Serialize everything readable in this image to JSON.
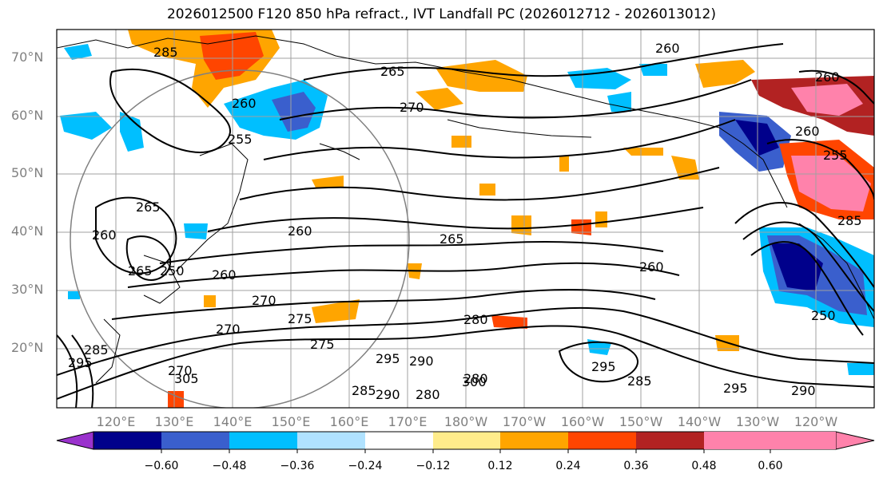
{
  "title": "2026012500 F120 850 hPa refract., IVT Landfall PC (2026012712 - 2026013012)",
  "lat_labels": [
    "70°N",
    "60°N",
    "50°N",
    "40°N",
    "30°N",
    "20°N"
  ],
  "lon_labels": [
    "120°E",
    "130°E",
    "140°E",
    "150°E",
    "160°E",
    "170°E",
    "180°W",
    "170°W",
    "160°W",
    "150°W",
    "140°W",
    "130°W",
    "120°W"
  ],
  "colorbar": {
    "ticks": [
      "−0.60",
      "−0.48",
      "−0.36",
      "−0.24",
      "−0.12",
      "0.12",
      "0.24",
      "0.36",
      "0.48",
      "0.60"
    ],
    "colors": [
      "#9a32cd",
      "#00008b",
      "#3a5fcd",
      "#00bfff",
      "#b0e2ff",
      "#ffffff",
      "#ffec8b",
      "#ffa500",
      "#ff4500",
      "#b22222",
      "#ff82ab"
    ]
  },
  "contour_labels": [
    "285",
    "260",
    "265",
    "270",
    "260",
    "255",
    "265",
    "260",
    "260",
    "265",
    "260",
    "270",
    "270",
    "275",
    "275",
    "280",
    "295",
    "290",
    "280",
    "295",
    "290",
    "285",
    "305",
    "250",
    "260",
    "260",
    "255",
    "260",
    "265",
    "270",
    "280",
    "285",
    "285",
    "300",
    "295",
    "250",
    "290",
    "295",
    "285"
  ]
}
